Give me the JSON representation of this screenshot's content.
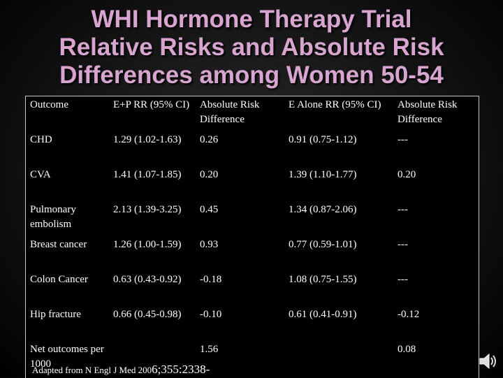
{
  "slide": {
    "title_lines": [
      "WHI Hormone Therapy Trial",
      "Relative Risks and Absolute Risk",
      "Differences among Women 50-54"
    ],
    "source_prefix": "Adapted from N Engl J Med 200",
    "source_citation": "6;355:2338-",
    "speaker_icon": "speaker-icon"
  },
  "table": {
    "headers": [
      "Outcome",
      "E+P RR (95% CI)",
      "Absolute Risk Difference",
      "E Alone RR (95% CI)",
      "Absolute Risk Difference"
    ],
    "rows": [
      [
        "CHD",
        "1.29 (1.02-1.63)",
        "0.26",
        "0.91 (0.75-1.12)",
        "---"
      ],
      [
        "CVA",
        "1.41 (1.07-1.85)",
        "0.20",
        "1.39 (1.10-1.77)",
        "0.20"
      ],
      [
        "Pulmonary embolism",
        "2.13 (1.39-3.25)",
        "0.45",
        "1.34 (0.87-2.06)",
        "---"
      ],
      [
        "Breast cancer",
        "1.26 (1.00-1.59)",
        "0.93",
        "0.77 (0.59-1.01)",
        "---"
      ],
      [
        "Colon Cancer",
        "0.63 (0.43-0.92)",
        "-0.18",
        "1.08 (0.75-1.55)",
        "---"
      ],
      [
        "Hip fracture",
        "0.66 (0.45-0.98)",
        "-0.10",
        "0.61 (0.41-0.91)",
        "-0.12"
      ],
      [
        "Net outcomes per 1000",
        "",
        "1.56",
        "",
        "0.08"
      ]
    ]
  }
}
